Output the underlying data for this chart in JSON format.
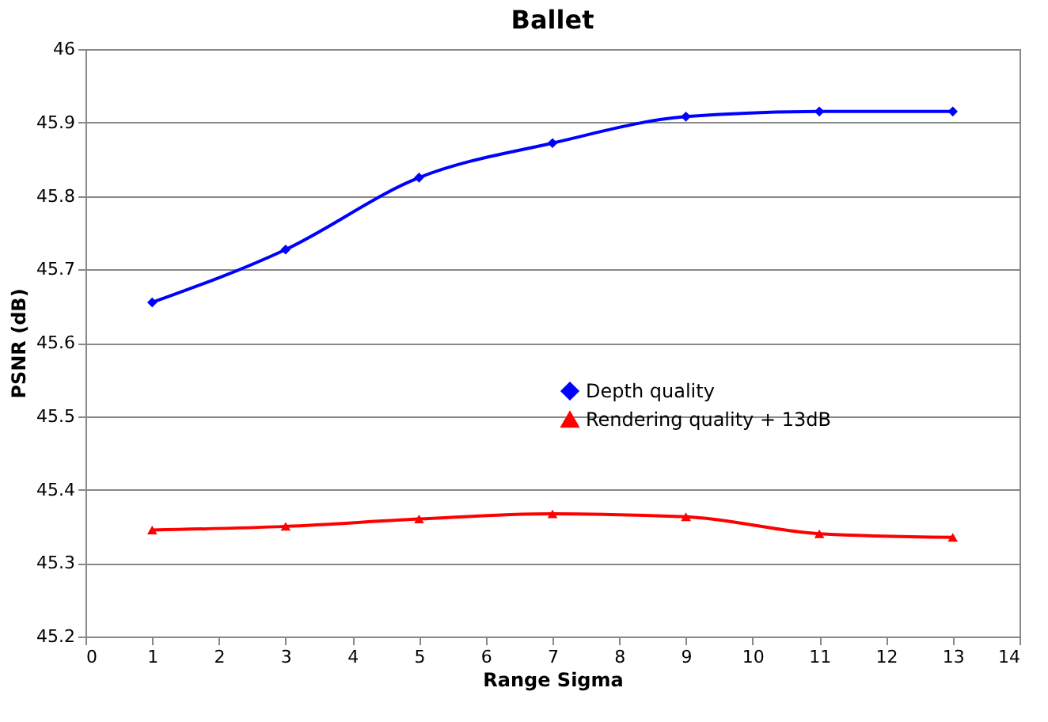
{
  "chart_data": {
    "type": "line",
    "title": "Ballet",
    "xlabel": "Range Sigma",
    "ylabel": "PSNR (dB)",
    "x": [
      1,
      3,
      5,
      7,
      9,
      11,
      13
    ],
    "series": [
      {
        "name": "Depth quality",
        "color": "#0000ff",
        "marker": "diamond",
        "values": [
          45.655,
          45.727,
          45.825,
          45.872,
          45.908,
          45.915,
          45.915
        ]
      },
      {
        "name": "Rendering quality + 13dB",
        "color": "#ff0000",
        "marker": "triangle",
        "values": [
          45.345,
          45.35,
          45.36,
          45.367,
          45.363,
          45.34,
          45.335
        ]
      }
    ],
    "xlim": [
      0,
      14
    ],
    "xticks": [
      0,
      1,
      2,
      3,
      4,
      5,
      6,
      7,
      8,
      9,
      10,
      11,
      12,
      13,
      14
    ],
    "ylim": [
      45.2,
      46
    ],
    "yticks": [
      45.2,
      45.3,
      45.4,
      45.5,
      45.6,
      45.7,
      45.8,
      45.9,
      46
    ],
    "grid": "y",
    "legend": "right",
    "line_style": "solid"
  }
}
